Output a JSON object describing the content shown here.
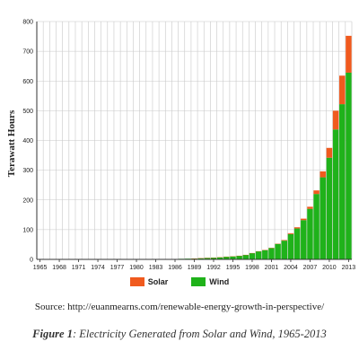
{
  "chart_data": {
    "type": "bar",
    "stacked": true,
    "title": "",
    "xlabel": "",
    "ylabel": "Terawatt Hours",
    "ylim": [
      0,
      800
    ],
    "yticks": [
      0,
      100,
      200,
      300,
      400,
      500,
      600,
      700,
      800
    ],
    "grid": true,
    "legend_position": "bottom",
    "categories": [
      1965,
      1966,
      1967,
      1968,
      1969,
      1970,
      1971,
      1972,
      1973,
      1974,
      1975,
      1976,
      1977,
      1978,
      1979,
      1980,
      1981,
      1982,
      1983,
      1984,
      1985,
      1986,
      1987,
      1988,
      1989,
      1990,
      1991,
      1992,
      1993,
      1994,
      1995,
      1996,
      1997,
      1998,
      1999,
      2000,
      2001,
      2002,
      2003,
      2004,
      2005,
      2006,
      2007,
      2008,
      2009,
      2010,
      2011,
      2012,
      2013
    ],
    "xtick_labels": [
      "1965",
      "1968",
      "1971",
      "1974",
      "1977",
      "1980",
      "1983",
      "1986",
      "1989",
      "1992",
      "1995",
      "1998",
      "2001",
      "2004",
      "2007",
      "2010",
      "2013"
    ],
    "series": [
      {
        "name": "Wind",
        "color": "#1fb21a",
        "values": [
          0,
          0,
          0,
          0,
          0,
          0,
          0,
          0,
          0,
          0,
          0,
          0,
          0,
          0,
          0,
          0,
          0,
          0,
          0.1,
          0.3,
          0.6,
          1,
          2,
          2.5,
          3,
          4,
          5,
          6,
          7,
          9,
          10,
          12,
          15,
          21,
          27,
          31,
          38,
          52,
          63,
          85,
          104,
          132,
          170,
          220,
          276,
          342,
          437,
          522,
          628
        ]
      },
      {
        "name": "Solar",
        "color": "#f05a1e",
        "values": [
          0,
          0,
          0,
          0,
          0,
          0,
          0,
          0,
          0,
          0,
          0,
          0,
          0,
          0,
          0,
          0,
          0,
          0,
          0,
          0,
          0,
          0,
          0,
          0,
          0.1,
          0.1,
          0.1,
          0.1,
          0.1,
          0.2,
          0.2,
          0.3,
          0.3,
          0.4,
          0.5,
          1,
          1,
          1,
          2,
          3,
          4,
          5,
          7,
          12,
          20,
          33,
          63,
          96,
          124
        ]
      }
    ]
  },
  "legend": {
    "items": [
      {
        "label": "Solar",
        "color": "#f05a1e"
      },
      {
        "label": "Wind",
        "color": "#1fb21a"
      }
    ]
  },
  "source": {
    "text": "Source: http://euanmearns.com/renewable-energy-growth-in-perspective/"
  },
  "caption": {
    "figure": "Figure 1",
    "text": ": Electricity Generated from Solar and Wind, 1965-2013"
  }
}
